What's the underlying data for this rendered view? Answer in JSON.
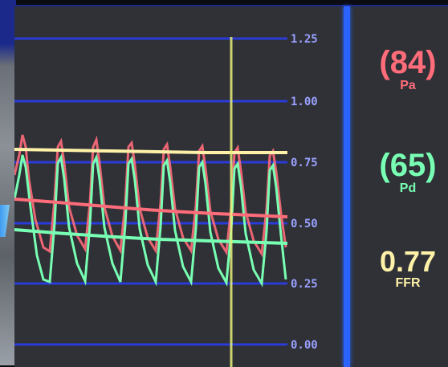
{
  "axis": {
    "ticks": [
      "1.25",
      "1.00",
      "0.75",
      "0.50",
      "0.25",
      "0.00"
    ]
  },
  "readouts": {
    "pa": {
      "value": "(84)",
      "label": "Pa"
    },
    "pd": {
      "value": "(65)",
      "label": "Pd"
    },
    "ffr": {
      "value": "0.77",
      "label": "FFR"
    }
  },
  "colors": {
    "pa": "#ff6c7a",
    "pd": "#78ffb3",
    "ffr": "#fff2a8",
    "grid": "#2a3bd8",
    "divider": "#2a63ff",
    "cursor": "#e9f07a"
  }
}
